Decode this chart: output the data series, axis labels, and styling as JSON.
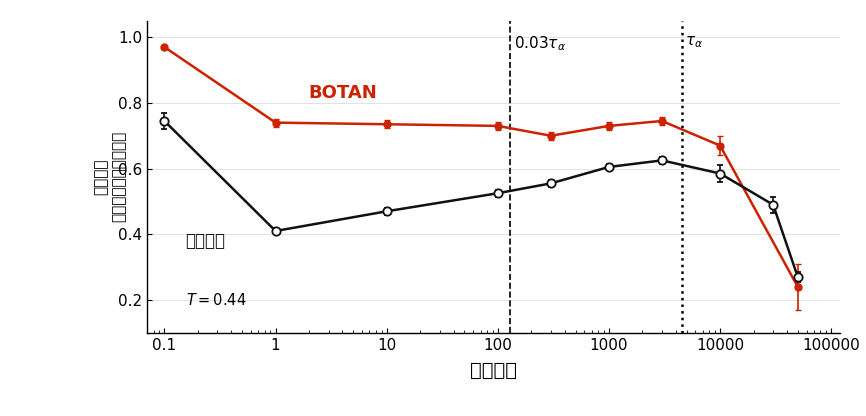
{
  "botan_x": [
    0.1,
    1.0,
    10.0,
    100.0,
    300.0,
    1000.0,
    3000.0,
    10000.0,
    50000.0
  ],
  "botan_y": [
    0.97,
    0.74,
    0.735,
    0.73,
    0.7,
    0.73,
    0.745,
    0.67,
    0.24
  ],
  "botan_yerr": [
    0.0,
    0.012,
    0.012,
    0.012,
    0.012,
    0.012,
    0.012,
    0.03,
    0.07
  ],
  "prior_x": [
    0.1,
    1.0,
    10.0,
    100.0,
    300.0,
    1000.0,
    3000.0,
    10000.0,
    30000.0,
    50000.0
  ],
  "prior_y": [
    0.745,
    0.41,
    0.47,
    0.525,
    0.555,
    0.605,
    0.625,
    0.585,
    0.49,
    0.27
  ],
  "prior_yerr": [
    0.025,
    0.01,
    0.01,
    0.01,
    0.01,
    0.01,
    0.01,
    0.025,
    0.025,
    0.015
  ],
  "botan_color": "#cc2200",
  "prior_color": "#111111",
  "vline1_x": 130,
  "vline2_x": 4500,
  "xlabel": "経過時間",
  "ylabel_line1": "予測精度",
  "ylabel_line2": "（ピアソン相関係数）",
  "botan_label": "BOTAN",
  "prior_label": "先行研究",
  "xlim": [
    0.07,
    120000
  ],
  "ylim": [
    0.1,
    1.05
  ],
  "yticks": [
    0.2,
    0.4,
    0.6,
    0.8,
    1.0
  ],
  "background_color": "#ffffff"
}
